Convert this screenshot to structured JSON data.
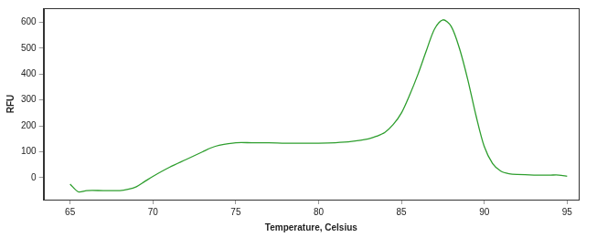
{
  "chart_data": {
    "type": "line",
    "x_label": "Temperature, Celsius",
    "y_label": "RFU",
    "x": [
      65,
      65.5,
      66,
      67,
      68,
      68.5,
      69,
      69.5,
      70,
      71,
      72,
      73,
      73.5,
      74,
      75,
      76,
      77,
      78,
      79,
      80,
      81,
      82,
      83,
      83.5,
      84,
      84.5,
      85,
      85.5,
      86,
      86.5,
      87,
      87.5,
      88,
      88.5,
      89,
      89.5,
      90,
      90.5,
      91,
      91.5,
      92,
      93,
      94,
      94.5,
      95
    ],
    "values": [
      -25,
      -55,
      -50,
      -50,
      -50,
      -45,
      -35,
      -15,
      5,
      40,
      70,
      100,
      115,
      125,
      135,
      135,
      135,
      133,
      133,
      133,
      135,
      140,
      150,
      160,
      175,
      205,
      250,
      320,
      400,
      490,
      575,
      610,
      585,
      500,
      380,
      240,
      120,
      55,
      25,
      15,
      12,
      10,
      10,
      10,
      5
    ],
    "color": "#2e9e2e",
    "xlim": [
      63.4,
      95.7
    ],
    "xticks": [
      65,
      70,
      75,
      80,
      85,
      90,
      95
    ],
    "ylim": [
      -85,
      655
    ],
    "yticks": [
      0,
      100,
      200,
      300,
      400,
      500,
      600
    ],
    "grid": false
  }
}
